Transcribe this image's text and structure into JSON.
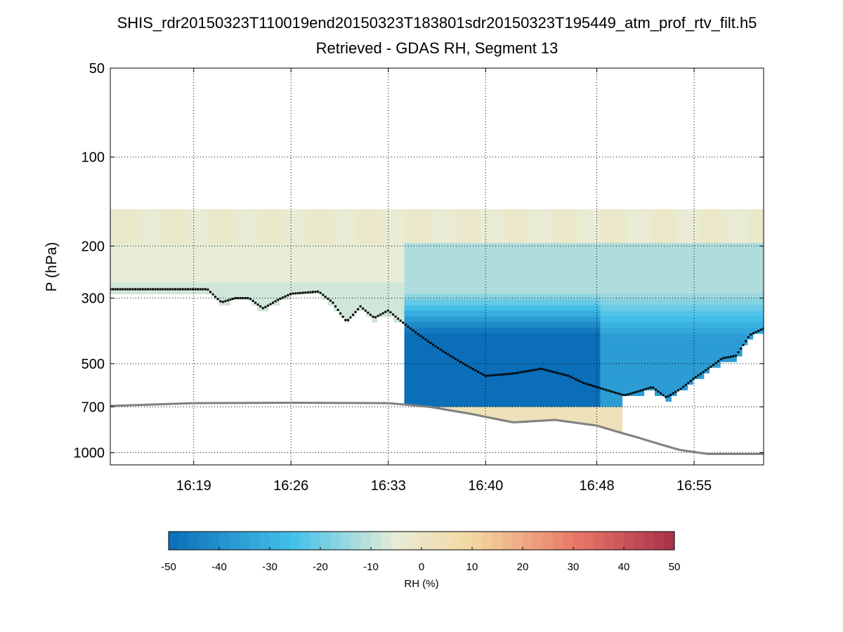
{
  "chart_data": {
    "type": "heatmap",
    "title": "SHIS_rdr20150323T110019end20150323T183801sdr20150323T195449_atm_prof_rtv_filt.h5",
    "subtitle": "Retrieved - GDAS RH, Segment 13",
    "xlabel": "",
    "ylabel": "P (hPa)",
    "y_scale": "log",
    "y_reversed": true,
    "xlim": [
      "16:13",
      "17:00"
    ],
    "ylim": [
      1100,
      50
    ],
    "x_ticks": [
      "16:19",
      "16:26",
      "16:33",
      "16:40",
      "16:48",
      "16:55"
    ],
    "y_ticks": [
      50,
      100,
      200,
      300,
      500,
      700,
      1000
    ],
    "grid": true,
    "colorbar": {
      "label": "RH (%)",
      "min": -50,
      "max": 50,
      "ticks": [
        -50,
        -40,
        -30,
        -20,
        -10,
        0,
        10,
        20,
        30,
        40,
        50
      ],
      "colors": [
        "#0a6eb8",
        "#45c2ea",
        "#e8ecd6",
        "#f3d8a0",
        "#ea7a68",
        "#a9304a"
      ]
    },
    "surface_pressure_series": {
      "color": "#808080",
      "points": [
        [
          "16:13",
          695
        ],
        [
          "16:19",
          680
        ],
        [
          "16:26",
          678
        ],
        [
          "16:33",
          680
        ],
        [
          "16:36",
          700
        ],
        [
          "16:39",
          740
        ],
        [
          "16:42",
          790
        ],
        [
          "16:43",
          785
        ],
        [
          "16:45",
          775
        ],
        [
          "16:48",
          810
        ],
        [
          "16:51",
          890
        ],
        [
          "16:54",
          980
        ],
        [
          "16:56",
          1010
        ],
        [
          "17:00",
          1010
        ]
      ]
    },
    "cloud_top_series": {
      "color": "#000000",
      "points": [
        [
          "16:13",
          280
        ],
        [
          "16:20",
          280
        ],
        [
          "16:21",
          310
        ],
        [
          "16:22",
          300
        ],
        [
          "16:23",
          300
        ],
        [
          "16:24",
          325
        ],
        [
          "16:25",
          305
        ],
        [
          "16:26",
          290
        ],
        [
          "16:28",
          285
        ],
        [
          "16:29",
          310
        ],
        [
          "16:30",
          360
        ],
        [
          "16:31",
          320
        ],
        [
          "16:32",
          350
        ],
        [
          "16:33",
          330
        ],
        [
          "16:40",
          550
        ],
        [
          "16:42",
          540
        ],
        [
          "16:44",
          520
        ],
        [
          "16:46",
          550
        ],
        [
          "16:47",
          580
        ],
        [
          "16:49",
          620
        ],
        [
          "16:50",
          640
        ],
        [
          "16:52",
          600
        ],
        [
          "16:53",
          650
        ],
        [
          "16:54",
          610
        ],
        [
          "16:55",
          560
        ],
        [
          "16:56",
          520
        ],
        [
          "16:57",
          480
        ],
        [
          "16:58",
          470
        ],
        [
          "16:59",
          400
        ],
        [
          "17:00",
          380
        ]
      ]
    }
  }
}
